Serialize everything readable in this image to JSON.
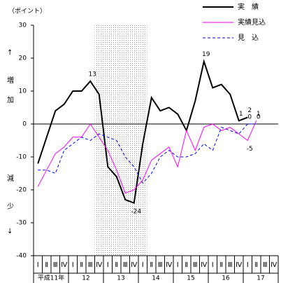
{
  "chart_data": {
    "type": "line",
    "y_unit": "（ポイント）",
    "annotations": [
      "↑",
      "増",
      "加",
      "減",
      "少",
      "↓"
    ],
    "categories": [
      "Ⅰ",
      "Ⅱ",
      "Ⅲ",
      "Ⅳ",
      "Ⅰ",
      "Ⅱ",
      "Ⅲ",
      "Ⅳ",
      "Ⅰ",
      "Ⅱ",
      "Ⅲ",
      "Ⅳ",
      "Ⅰ",
      "Ⅱ",
      "Ⅲ",
      "Ⅳ",
      "Ⅰ",
      "Ⅱ",
      "Ⅲ",
      "Ⅳ",
      "Ⅰ",
      "Ⅱ",
      "Ⅲ",
      "Ⅳ",
      "Ⅰ",
      "Ⅱ",
      "Ⅲ",
      "Ⅳ"
    ],
    "year_groups": [
      "平成11年",
      "12",
      "13",
      "14",
      "15",
      "16",
      "17"
    ],
    "ylim": [
      -40,
      30
    ],
    "yticks": [
      30,
      20,
      10,
      0,
      -10,
      -20,
      -30,
      -40
    ],
    "shaded_quarters": [
      7,
      12
    ],
    "series": [
      {
        "name": "実　績",
        "color": "#000000",
        "dash": "solid",
        "values": [
          -12,
          -4,
          4,
          6,
          10,
          10,
          13,
          9,
          -13,
          -16,
          -23,
          -24,
          -6,
          8,
          4,
          5,
          3,
          -2,
          7,
          19,
          11,
          12,
          9,
          1,
          2,
          null,
          null,
          null
        ],
        "labels": [
          [
            6,
            "13"
          ],
          [
            11,
            "-24"
          ],
          [
            19,
            "19"
          ],
          [
            23,
            "1"
          ],
          [
            24,
            "2"
          ]
        ]
      },
      {
        "name": "実績見込",
        "color": "#ff00ff",
        "dash": "solid",
        "values": [
          -19,
          -14,
          -9,
          -7,
          -4,
          -4,
          0,
          -4,
          -8,
          -14,
          -21,
          -20,
          -17,
          -11,
          -9,
          -7,
          -13,
          -2,
          -8,
          -1,
          0,
          -2,
          -1,
          -3,
          -5,
          1,
          null,
          null
        ],
        "labels": [
          [
            24,
            "-5"
          ],
          [
            25,
            "1"
          ]
        ]
      },
      {
        "name": "見　込",
        "color": "#0000ff",
        "dash": "dashed",
        "values": [
          -14,
          -14,
          -15,
          -8,
          -6,
          -4,
          -5,
          -3,
          -4,
          -5,
          -10,
          -13,
          -18,
          -15,
          -10,
          -8,
          -10,
          -10,
          -9,
          -6,
          -8,
          -1,
          -2,
          -3,
          0,
          0,
          null,
          null
        ],
        "labels": [
          [
            24,
            "0"
          ],
          [
            25,
            "0"
          ]
        ]
      }
    ]
  }
}
